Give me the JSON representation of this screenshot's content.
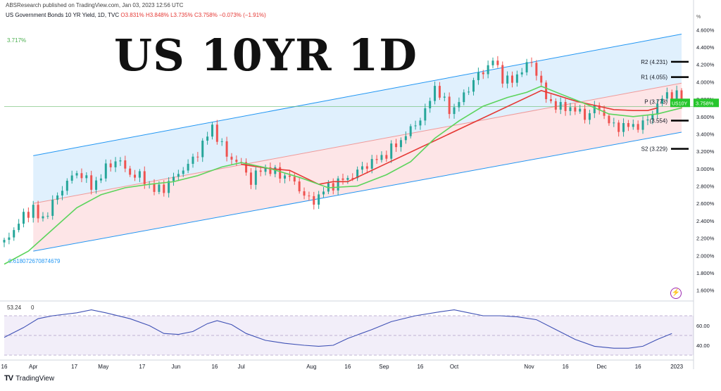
{
  "header": {
    "publisher": "ABSResearch published on TradingView.com, Jan 03, 2023 12:56 UTC",
    "symbol_title": "US Government Bonds 10 YR Yield, 1D, TVC",
    "ohlc": {
      "o": "O3.831%",
      "h": "H3.848%",
      "l": "L3.735%",
      "c": "C3.758%",
      "chg": "−0.073% (−1.91%)"
    }
  },
  "overlay_title": "US 10YR 1D",
  "footer": {
    "brand": "TradingView",
    "logo_icon": "tradingview-logo-icon",
    "alert_icon": "lightning-icon"
  },
  "chart_data": {
    "type": "candlestick",
    "title": "US 10YR 1D",
    "y_unit": "%",
    "ylim": [
      1.5,
      4.7
    ],
    "y_ticks": [
      {
        "value": 1.6,
        "label": "1.600%"
      },
      {
        "value": 1.8,
        "label": "1.800%"
      },
      {
        "value": 2.0,
        "label": "2.000%"
      },
      {
        "value": 2.2,
        "label": "2.200%"
      },
      {
        "value": 2.4,
        "label": "2.400%"
      },
      {
        "value": 2.6,
        "label": "2.600%"
      },
      {
        "value": 2.8,
        "label": "2.800%"
      },
      {
        "value": 3.0,
        "label": "3.000%"
      },
      {
        "value": 3.2,
        "label": "3.200%"
      },
      {
        "value": 3.4,
        "label": "3.400%"
      },
      {
        "value": 3.6,
        "label": "3.600%"
      },
      {
        "value": 3.8,
        "label": "3.800%"
      },
      {
        "value": 4.0,
        "label": "4.000%"
      },
      {
        "value": 4.2,
        "label": "4.200%"
      },
      {
        "value": 4.4,
        "label": "4.400%"
      },
      {
        "value": 4.6,
        "label": "4.600%"
      }
    ],
    "x_ticks": [
      "16",
      "Apr",
      "17",
      "May",
      "17",
      "Jun",
      "16",
      "Jul",
      "Aug",
      "16",
      "Sep",
      "16",
      "Oct",
      "Nov",
      "16",
      "Dec",
      "16",
      "2023"
    ],
    "x_tick_day": [
      0,
      12,
      29,
      41,
      57,
      71,
      87,
      98,
      127,
      142,
      157,
      172,
      186,
      217,
      232,
      247,
      262,
      278
    ],
    "channel": {
      "upper": [
        {
          "day": 12,
          "value": 3.15
        },
        {
          "day": 280,
          "value": 4.55
        }
      ],
      "middle": [
        {
          "day": 12,
          "value": 2.6
        },
        {
          "day": 280,
          "value": 3.985
        }
      ],
      "lower": [
        {
          "day": 12,
          "value": 2.05
        },
        {
          "day": 280,
          "value": 3.42
        }
      ]
    },
    "start_label": "3.717%",
    "end_label": "0.618072670874679",
    "reference_value": 3.717,
    "pivots": [
      {
        "label": "R2 (4.231)",
        "value": 4.231
      },
      {
        "label": "R1 (4.055)",
        "value": 4.055
      },
      {
        "label": "P (3.773)",
        "value": 3.773
      },
      {
        "label": "(3.554)",
        "value": 3.554
      },
      {
        "label": "S2 (3.229)",
        "value": 3.229
      }
    ],
    "price_badge": {
      "symbol": "US10Y",
      "value": "3.758%"
    },
    "series": [
      {
        "kind": "candles",
        "anchors": [
          [
            0,
            2.15
          ],
          [
            8,
            2.45
          ],
          [
            12,
            2.55
          ],
          [
            15,
            2.38
          ],
          [
            20,
            2.6
          ],
          [
            27,
            2.9
          ],
          [
            32,
            2.95
          ],
          [
            36,
            2.78
          ],
          [
            42,
            3.0
          ],
          [
            47,
            3.12
          ],
          [
            51,
            2.95
          ],
          [
            57,
            2.9
          ],
          [
            62,
            2.75
          ],
          [
            66,
            2.78
          ],
          [
            71,
            2.92
          ],
          [
            78,
            3.1
          ],
          [
            84,
            3.38
          ],
          [
            86,
            3.48
          ],
          [
            92,
            3.15
          ],
          [
            98,
            3.05
          ],
          [
            102,
            2.86
          ],
          [
            107,
            3.02
          ],
          [
            112,
            2.95
          ],
          [
            118,
            2.9
          ],
          [
            124,
            2.7
          ],
          [
            127,
            2.6
          ],
          [
            132,
            2.75
          ],
          [
            138,
            2.85
          ],
          [
            143,
            2.9
          ],
          [
            150,
            3.05
          ],
          [
            157,
            3.15
          ],
          [
            163,
            3.3
          ],
          [
            168,
            3.45
          ],
          [
            174,
            3.65
          ],
          [
            178,
            3.95
          ],
          [
            181,
            3.8
          ],
          [
            185,
            3.65
          ],
          [
            190,
            3.85
          ],
          [
            195,
            4.05
          ],
          [
            199,
            4.15
          ],
          [
            202,
            4.25
          ],
          [
            206,
            4.05
          ],
          [
            210,
            4.0
          ],
          [
            214,
            4.15
          ],
          [
            218,
            4.22
          ],
          [
            221,
            4.05
          ],
          [
            224,
            3.8
          ],
          [
            230,
            3.7
          ],
          [
            235,
            3.7
          ],
          [
            240,
            3.6
          ],
          [
            245,
            3.72
          ],
          [
            249,
            3.58
          ],
          [
            252,
            3.47
          ],
          [
            256,
            3.5
          ],
          [
            260,
            3.48
          ],
          [
            266,
            3.55
          ],
          [
            270,
            3.75
          ],
          [
            274,
            3.85
          ],
          [
            278,
            3.85
          ],
          [
            280,
            3.758
          ]
        ]
      },
      {
        "kind": "ma_fast",
        "name": "",
        "color": "#e53935",
        "points": [
          [
            98,
            3.05
          ],
          [
            110,
            3.0
          ],
          [
            118,
            2.98
          ],
          [
            124,
            2.9
          ],
          [
            130,
            2.82
          ],
          [
            136,
            2.85
          ],
          [
            142,
            2.85
          ],
          [
            222,
            3.9
          ],
          [
            228,
            3.85
          ],
          [
            236,
            3.78
          ],
          [
            244,
            3.73
          ],
          [
            252,
            3.68
          ],
          [
            260,
            3.67
          ],
          [
            266,
            3.67
          ],
          [
            270,
            3.7
          ]
        ]
      },
      {
        "kind": "ma_slow",
        "name": "",
        "color": "#5cd45c",
        "points": [
          [
            0,
            1.9
          ],
          [
            10,
            2.05
          ],
          [
            20,
            2.3
          ],
          [
            30,
            2.55
          ],
          [
            40,
            2.7
          ],
          [
            50,
            2.78
          ],
          [
            60,
            2.82
          ],
          [
            70,
            2.85
          ],
          [
            80,
            2.92
          ],
          [
            90,
            3.02
          ],
          [
            98,
            3.07
          ],
          [
            110,
            3.0
          ],
          [
            122,
            2.9
          ],
          [
            134,
            2.78
          ],
          [
            146,
            2.8
          ],
          [
            158,
            2.93
          ],
          [
            168,
            3.08
          ],
          [
            178,
            3.35
          ],
          [
            188,
            3.55
          ],
          [
            198,
            3.72
          ],
          [
            208,
            3.82
          ],
          [
            216,
            3.88
          ],
          [
            222,
            3.95
          ],
          [
            230,
            3.86
          ],
          [
            240,
            3.75
          ],
          [
            250,
            3.63
          ],
          [
            260,
            3.6
          ],
          [
            270,
            3.63
          ],
          [
            280,
            3.7
          ]
        ]
      }
    ],
    "rsi": {
      "label": "53.24",
      "sub_label": "0",
      "ylim": [
        30,
        80
      ],
      "bands": [
        70,
        50,
        30
      ],
      "ticks": [
        {
          "value": 60,
          "label": "60.00"
        },
        {
          "value": 40,
          "label": "40.00"
        }
      ],
      "color": "#3f51b5",
      "points": [
        [
          0,
          48
        ],
        [
          8,
          58
        ],
        [
          14,
          67
        ],
        [
          20,
          70
        ],
        [
          30,
          73
        ],
        [
          36,
          76
        ],
        [
          42,
          73
        ],
        [
          52,
          67
        ],
        [
          60,
          60
        ],
        [
          66,
          52
        ],
        [
          72,
          51
        ],
        [
          78,
          54
        ],
        [
          84,
          62
        ],
        [
          88,
          65
        ],
        [
          94,
          61
        ],
        [
          100,
          52
        ],
        [
          108,
          45
        ],
        [
          116,
          42
        ],
        [
          124,
          40
        ],
        [
          130,
          39
        ],
        [
          136,
          40
        ],
        [
          142,
          47
        ],
        [
          152,
          56
        ],
        [
          160,
          64
        ],
        [
          170,
          70
        ],
        [
          180,
          74
        ],
        [
          186,
          76
        ],
        [
          192,
          73
        ],
        [
          198,
          70
        ],
        [
          205,
          70
        ],
        [
          212,
          69
        ],
        [
          220,
          66
        ],
        [
          228,
          56
        ],
        [
          236,
          46
        ],
        [
          244,
          39
        ],
        [
          252,
          37
        ],
        [
          258,
          37
        ],
        [
          264,
          39
        ],
        [
          270,
          46
        ],
        [
          276,
          52
        ]
      ]
    }
  }
}
